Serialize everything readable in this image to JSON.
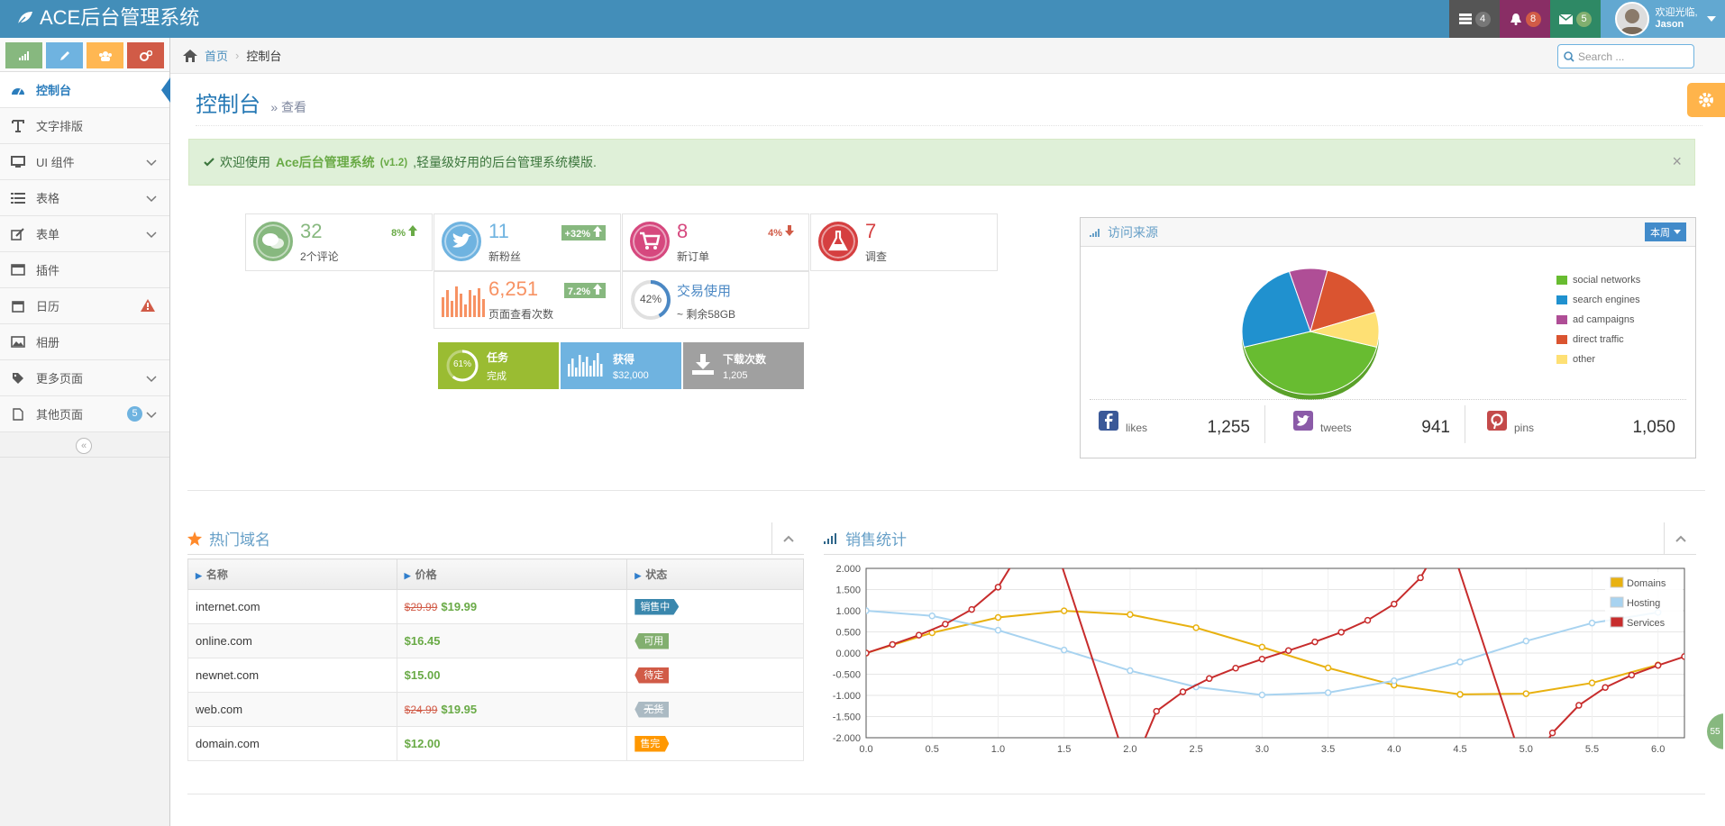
{
  "app": {
    "title": "ACE后台管理系统"
  },
  "navbar": {
    "tasks_count": "4",
    "notif_count": "8",
    "msg_count": "5",
    "user_greeting": "欢迎光临,",
    "user_name": "Jason"
  },
  "sidebar": {
    "items": [
      {
        "label": "控制台",
        "icon": "dashboard-icon"
      },
      {
        "label": "文字排版",
        "icon": "text-icon"
      },
      {
        "label": "UI 组件",
        "icon": "desktop-icon"
      },
      {
        "label": "表格",
        "icon": "list-icon"
      },
      {
        "label": "表单",
        "icon": "edit-icon"
      },
      {
        "label": "插件",
        "icon": "window-icon"
      },
      {
        "label": "日历",
        "icon": "calendar-icon"
      },
      {
        "label": "相册",
        "icon": "picture-icon"
      },
      {
        "label": "更多页面",
        "icon": "tag-icon"
      },
      {
        "label": "其他页面",
        "icon": "file-icon",
        "badge": "5"
      }
    ]
  },
  "breadcrumb": {
    "home": "首页",
    "current": "控制台"
  },
  "search": {
    "placeholder": "Search ..."
  },
  "page": {
    "title": "控制台",
    "subtitle": "» 查看"
  },
  "alert": {
    "pre": "欢迎使用",
    "brand": "Ace后台管理系统",
    "version": "(v1.2)",
    "post": ",轻量级好用的后台管理系统模版.",
    "close": "×"
  },
  "infoboxes": [
    {
      "num": "32",
      "label": "2个评论",
      "stat": "8%",
      "color": "#87b87f"
    },
    {
      "num": "11",
      "label": "新粉丝",
      "stat": "+32%",
      "color": "#6fb3e0"
    },
    {
      "num": "8",
      "label": "新订单",
      "stat": "4%",
      "color": "#d6487e"
    },
    {
      "num": "7",
      "label": "调查",
      "stat": "",
      "color": "#d53f40"
    },
    {
      "num": "6,251",
      "label": "页面查看次数",
      "stat": "7.2%",
      "color": "#f79263"
    },
    {
      "num": "交易使用",
      "label": "~ 剩余58GB",
      "stat": "42%",
      "color": "#4b88c4"
    }
  ],
  "bigbtns": [
    {
      "title": "任务",
      "sub": "完成",
      "pct": "61%",
      "color": "#9abc32"
    },
    {
      "title": "获得",
      "sub": "$32,000",
      "color": "#6fb3e0"
    },
    {
      "title": "下载次数",
      "sub": "1,205",
      "color": "#a0a0a0"
    }
  ],
  "traffic": {
    "title": "访问来源",
    "period": "本周",
    "legend": [
      {
        "name": "social networks",
        "color": "#68bc31"
      },
      {
        "name": "search engines",
        "color": "#2091cf"
      },
      {
        "name": "ad campaigns",
        "color": "#af4e96"
      },
      {
        "name": "direct traffic",
        "color": "#da5430"
      },
      {
        "name": "other",
        "color": "#fee074"
      }
    ],
    "social": [
      {
        "name": "likes",
        "value": "1,255",
        "icon": "facebook-icon"
      },
      {
        "name": "tweets",
        "value": "941",
        "icon": "twitter-icon"
      },
      {
        "name": "pins",
        "value": "1,050",
        "icon": "pinterest-icon"
      }
    ]
  },
  "domains": {
    "title": "热门域名",
    "headers": [
      "名称",
      "价格",
      "状态"
    ],
    "rows": [
      {
        "name": "internet.com",
        "old": "$29.99",
        "price": "$19.99",
        "status": "销售中",
        "color": "#3a87ad"
      },
      {
        "name": "online.com",
        "old": "",
        "price": "$16.45",
        "status": "可用",
        "color": "#82af6f"
      },
      {
        "name": "newnet.com",
        "old": "",
        "price": "$15.00",
        "status": "待定",
        "color": "#d15b47"
      },
      {
        "name": "web.com",
        "old": "$24.99",
        "price": "$19.95",
        "status": "无货",
        "color": "#abbac3"
      },
      {
        "name": "domain.com",
        "old": "",
        "price": "$12.00",
        "status": "售完",
        "color": "#ff9800"
      }
    ]
  },
  "sales": {
    "title": "销售统计"
  },
  "bubble": {
    "text": "55"
  },
  "chart_data": {
    "type": "line",
    "xlim": [
      0,
      6.2
    ],
    "ylim": [
      -2,
      2
    ],
    "xticks": [
      "0.0",
      "0.5",
      "1.0",
      "1.5",
      "2.0",
      "2.5",
      "3.0",
      "3.5",
      "4.0",
      "4.5",
      "5.0",
      "5.5",
      "6.0"
    ],
    "yticks": [
      "2.000",
      "1.500",
      "1.000",
      "0.500",
      "0.000",
      "-0.500",
      "-1.000",
      "-1.500",
      "-2.000"
    ],
    "series": [
      {
        "name": "Domains",
        "color": "#e8b110",
        "x": [
          0,
          0.5,
          1,
          1.5,
          2,
          2.5,
          3,
          3.5,
          4,
          4.5,
          5,
          5.5,
          6
        ],
        "y": [
          0,
          0.479,
          0.841,
          0.997,
          0.909,
          0.598,
          0.141,
          -0.351,
          -0.757,
          -0.977,
          -0.959,
          -0.706,
          -0.279
        ]
      },
      {
        "name": "Hosting",
        "color": "#a8d3f0",
        "x": [
          0,
          0.5,
          1,
          1.5,
          2,
          2.5,
          3,
          3.5,
          4,
          4.5,
          5,
          5.5,
          6
        ],
        "y": [
          1,
          0.878,
          0.54,
          0.071,
          -0.416,
          -0.801,
          -0.99,
          -0.936,
          -0.654,
          -0.211,
          0.284,
          0.709,
          0.96
        ]
      },
      {
        "name": "Services",
        "color": "#c72c2c",
        "x": [
          0,
          0.2,
          0.4,
          0.6,
          0.8,
          1.0,
          1.2,
          2.2,
          2.4,
          2.6,
          2.8,
          3.0,
          3.2,
          3.4,
          3.6,
          3.8,
          4.0,
          4.2,
          5.2,
          5.4,
          5.6,
          5.8,
          6.0,
          6.2
        ],
        "y": [
          0,
          0.203,
          0.423,
          0.684,
          1.03,
          1.557,
          2.572,
          -1.374,
          -0.916,
          -0.602,
          -0.356,
          -0.143,
          0.058,
          0.264,
          0.493,
          0.774,
          1.158,
          1.778,
          -1.886,
          -1.235,
          -0.813,
          -0.52,
          -0.291,
          -0.083
        ]
      }
    ]
  }
}
